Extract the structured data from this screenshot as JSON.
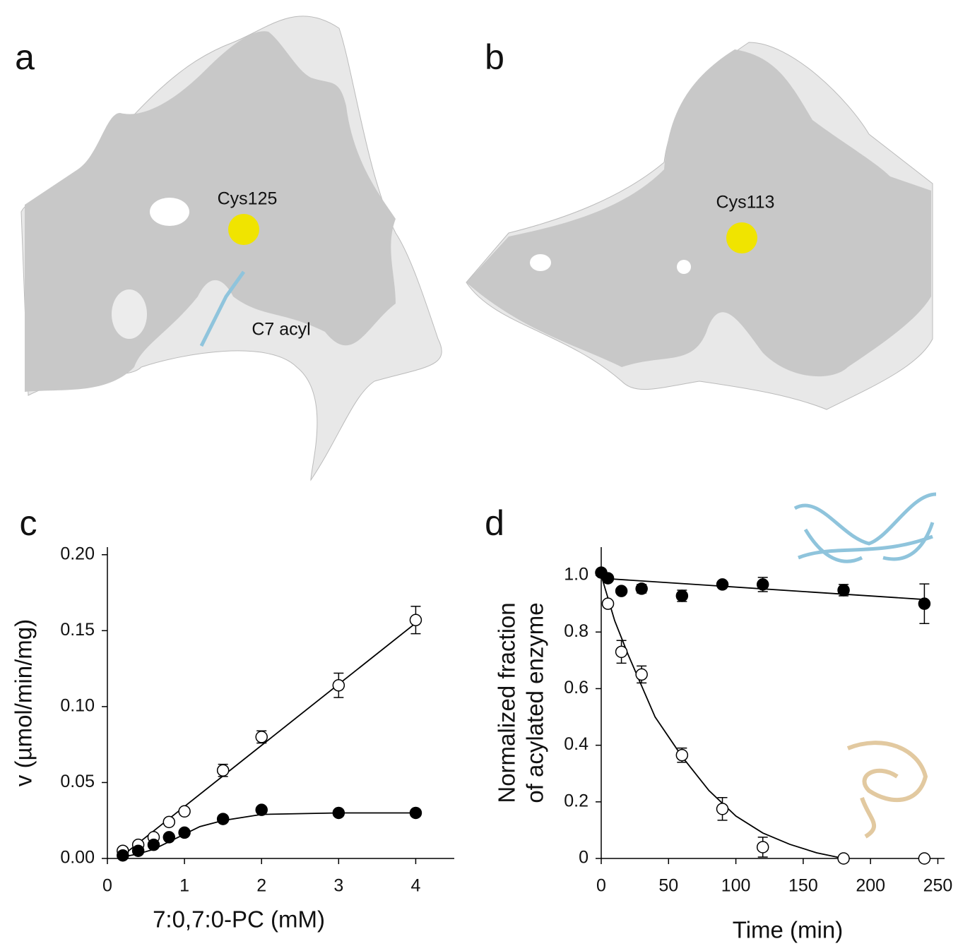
{
  "panels": [
    {
      "label": "a",
      "annotations": [
        "Cys125",
        "C7 acyl"
      ]
    },
    {
      "label": "b",
      "annotations": [
        "Cys113"
      ]
    }
  ],
  "chart_data": [
    {
      "type": "scatter",
      "panel_label": "c",
      "x_label": "7:0,7:0-PC (mM)",
      "y_label": [
        "v (µmol/min/mg)"
      ],
      "xlim": [
        0,
        4.5
      ],
      "ylim": [
        0,
        0.205
      ],
      "xticks": [
        0,
        1,
        2,
        3,
        4
      ],
      "yticks": [
        {
          "value": 0,
          "label": "0.00"
        },
        {
          "value": 0.05,
          "label": "0.05"
        },
        {
          "value": 0.1,
          "label": "0.10"
        },
        {
          "value": 0.15,
          "label": "0.15"
        },
        {
          "value": 0.2,
          "label": "0.20"
        }
      ],
      "series": [
        {
          "color": "#000000",
          "marker_fill": "#ffffff",
          "x": [
            0.2,
            0.4,
            0.6,
            0.8,
            1,
            1.5,
            2,
            3,
            4
          ],
          "values": [
            0.005,
            0.009,
            0.014,
            0.024,
            0.031,
            0.058,
            0.08,
            0.114,
            0.157
          ],
          "errors": [
            null,
            null,
            null,
            null,
            null,
            0.004,
            0.004,
            0.008,
            0.009
          ],
          "fit_x": [
            0.2,
            4
          ],
          "fit_values": [
            0.002,
            0.155
          ]
        },
        {
          "color": "#000000",
          "marker_fill": "#000000",
          "x": [
            0.2,
            0.4,
            0.6,
            0.8,
            1,
            1.5,
            2,
            3,
            4
          ],
          "values": [
            0.002,
            0.005,
            0.009,
            0.014,
            0.017,
            0.026,
            0.032,
            0.03,
            0.03
          ],
          "errors": [
            null,
            null,
            null,
            null,
            null,
            null,
            null,
            null,
            null
          ],
          "fit_x": [
            0.2,
            0.4,
            0.6,
            0.8,
            1,
            1.2,
            1.5,
            2,
            3,
            4
          ],
          "fit_values": [
            0.001,
            0.003,
            0.006,
            0.011,
            0.016,
            0.021,
            0.025,
            0.029,
            0.03,
            0.03
          ]
        }
      ]
    },
    {
      "type": "scatter",
      "panel_label": "d",
      "x_label": "Time (min)",
      "y_label": [
        "Normalized fraction",
        "of acylated enzyme"
      ],
      "xlim": [
        0,
        255
      ],
      "ylim": [
        0,
        1.1
      ],
      "xticks": [
        0,
        50,
        100,
        150,
        200,
        250
      ],
      "yticks": [
        0,
        0.2,
        0.4,
        0.6,
        0.8,
        {
          "value": 1,
          "label": "1.0"
        }
      ],
      "series": [
        {
          "color": "#000000",
          "marker_fill": "#000000",
          "x": [
            0,
            5,
            15,
            30,
            60,
            90,
            120,
            180,
            240
          ],
          "values": [
            1.01,
            0.99,
            0.945,
            0.953,
            0.928,
            0.968,
            0.968,
            0.948,
            0.9
          ],
          "errors": [
            null,
            null,
            null,
            0.015,
            0.02,
            null,
            0.025,
            0.02,
            0.07
          ],
          "fit_x": [
            0,
            240
          ],
          "fit_values": [
            0.99,
            0.915
          ]
        },
        {
          "color": "#000000",
          "marker_fill": "#ffffff",
          "x": [
            5,
            15,
            30,
            60,
            90,
            120,
            180,
            240
          ],
          "values": [
            0.9,
            0.73,
            0.65,
            0.365,
            0.175,
            0.04,
            0,
            0
          ],
          "errors": [
            null,
            0.04,
            0.03,
            0.025,
            0.04,
            0.035,
            null,
            null
          ],
          "fit_x": [
            0,
            10,
            20,
            40,
            60,
            80,
            100,
            120,
            140,
            160,
            180
          ],
          "fit_values": [
            1,
            0.84,
            0.72,
            0.5,
            0.36,
            0.24,
            0.15,
            0.09,
            0.05,
            0.02,
            0
          ]
        }
      ]
    }
  ]
}
